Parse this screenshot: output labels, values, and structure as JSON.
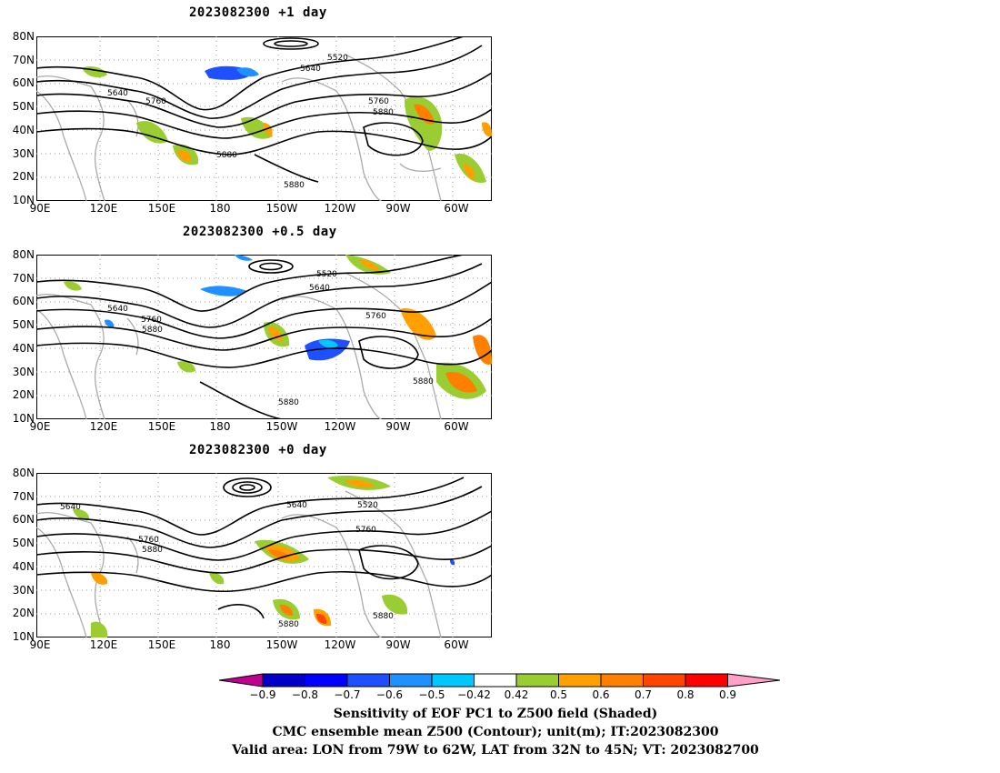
{
  "panels": [
    {
      "title": "2023082300  +1  day"
    },
    {
      "title": "2023082300  +0.5  day"
    },
    {
      "title": "2023082300  +0  day"
    }
  ],
  "lat_labels": [
    "80N",
    "70N",
    "60N",
    "50N",
    "40N",
    "30N",
    "20N",
    "10N"
  ],
  "lon_labels": [
    "90E",
    "120E",
    "150E",
    "180",
    "150W",
    "120W",
    "90W",
    "60W"
  ],
  "contour_labels": {
    "p0": [
      "5520",
      "5640",
      "5640",
      "5760",
      "5760",
      "5880",
      "5880",
      "5880"
    ],
    "p1": [
      "5520",
      "5640",
      "5640",
      "5760",
      "5760",
      "5880",
      "5880",
      "5880"
    ],
    "p2": [
      "5640",
      "5640",
      "5520",
      "5760",
      "5760",
      "5880",
      "5880",
      "5880"
    ]
  },
  "colorbar": {
    "ticks": [
      "−0.9",
      "−0.8",
      "−0.7",
      "−0.6",
      "−0.5",
      "−0.42",
      "0.42",
      "0.5",
      "0.6",
      "0.7",
      "0.8",
      "0.9"
    ],
    "colors": [
      "#c0008f",
      "#0000c8",
      "#0000ff",
      "#1e50ff",
      "#1e90ff",
      "#00c8ff",
      "#ffffff",
      "#9acd32",
      "#ff9f00",
      "#ff7f00",
      "#ff4500",
      "#ff0000",
      "#ffa0c8"
    ]
  },
  "footer": {
    "line1": "Sensitivity of EOF PC1 to Z500 field (Shaded)",
    "line2": "CMC ensemble mean Z500 (Contour); unit(m); IT:2023082300",
    "line3": "Valid area: LON from 79W to 62W, LAT from 32N to 45N; VT: 2023082700"
  }
}
